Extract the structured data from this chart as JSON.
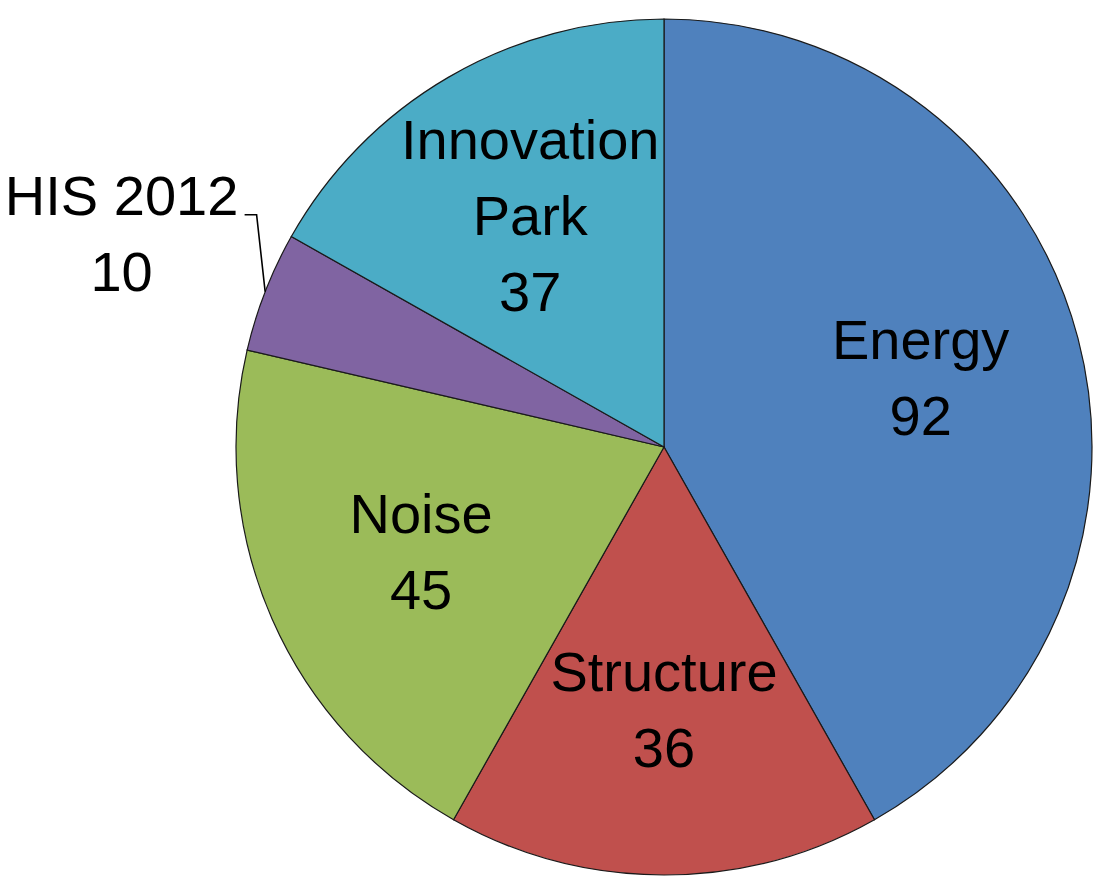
{
  "chart_data": {
    "type": "pie",
    "categories": [
      "Energy",
      "Structure",
      "Noise",
      "HIS 2012",
      "Innovation Park"
    ],
    "values": [
      92,
      36,
      45,
      10,
      37
    ],
    "colors": [
      "#4f81bd",
      "#c0504d",
      "#9bbb59",
      "#8064a2",
      "#4bacc6"
    ],
    "data_labels": true
  }
}
